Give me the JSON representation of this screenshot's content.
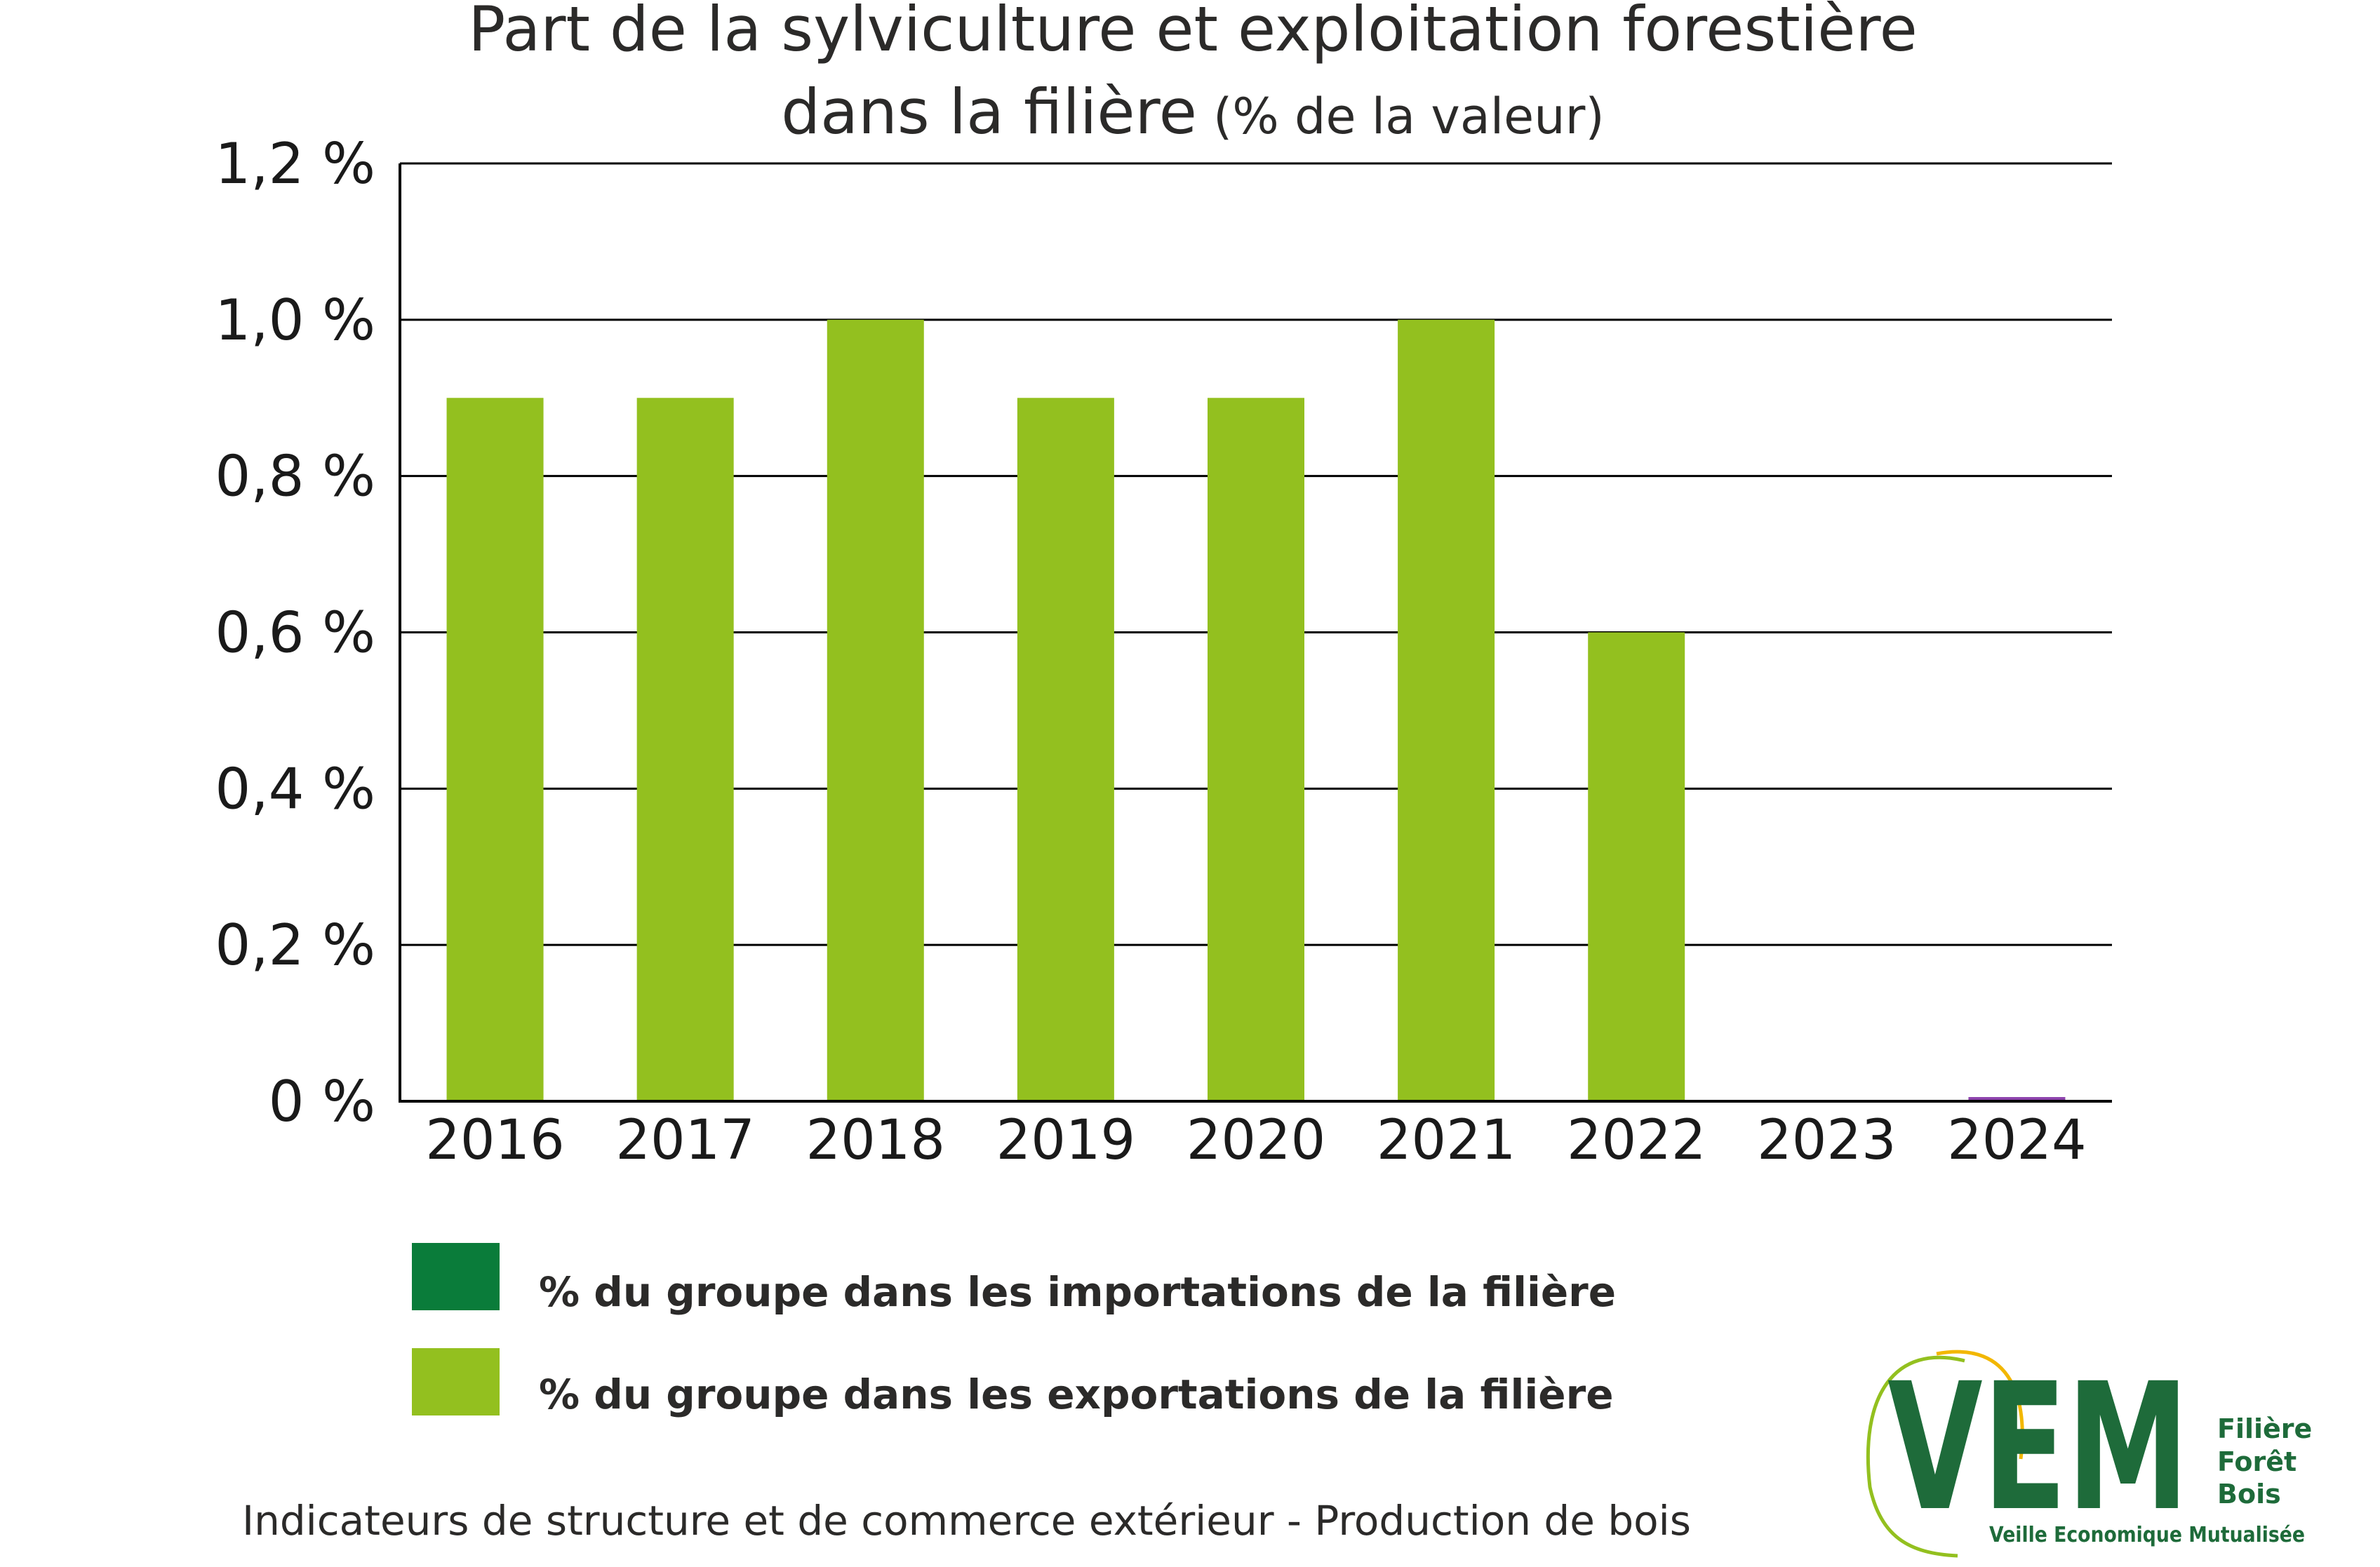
{
  "chart_data": {
    "type": "bar",
    "title": "Part de la sylviculture et exploitation forestière",
    "title_line2": "dans la filière",
    "title_suffix": "(% de la valeur)",
    "categories": [
      "2016",
      "2017",
      "2018",
      "2019",
      "2020",
      "2021",
      "2022",
      "2023",
      "2024"
    ],
    "series": [
      {
        "name": "% du groupe dans les importations de la filière",
        "color": "#0a7c3a",
        "values": [
          null,
          null,
          null,
          null,
          null,
          null,
          null,
          null,
          null
        ]
      },
      {
        "name": "% du groupe dans les exportations de la filière",
        "color": "#93c01f",
        "values": [
          0.9,
          0.9,
          1.0,
          0.9,
          0.9,
          1.0,
          0.6,
          null,
          0.0
        ]
      }
    ],
    "yticks": [
      "0 %",
      "0,2 %",
      "0,4 %",
      "0,6 %",
      "0,8 %",
      "1,0 %",
      "1,2 %"
    ],
    "ylim": [
      0,
      1.2
    ],
    "grid": true,
    "legend_position": "bottom"
  },
  "footer": "Indicateurs de structure et de commerce extérieur - Production de bois",
  "logo": {
    "mark": "VEM",
    "line1": "Filière",
    "line2": "Forêt",
    "line3": "Bois",
    "tagline": "Veille Economique Mutualisée"
  }
}
